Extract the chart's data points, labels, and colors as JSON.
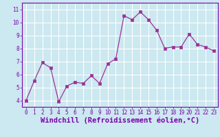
{
  "x": [
    0,
    1,
    2,
    3,
    4,
    5,
    6,
    7,
    8,
    9,
    10,
    11,
    12,
    13,
    14,
    15,
    16,
    17,
    18,
    19,
    20,
    21,
    22,
    23
  ],
  "y": [
    4.0,
    5.5,
    6.9,
    6.5,
    3.9,
    5.1,
    5.4,
    5.3,
    5.9,
    5.3,
    6.8,
    7.2,
    10.5,
    10.2,
    10.8,
    10.2,
    9.4,
    8.0,
    8.1,
    8.1,
    9.1,
    8.3,
    8.1,
    7.8
  ],
  "line_color": "#993399",
  "marker": "s",
  "marker_size": 2.5,
  "bg_color": "#cce8f0",
  "grid_color": "#ffffff",
  "xlabel": "Windchill (Refroidissement éolien,°C)",
  "xlabel_color": "#7700aa",
  "ylim": [
    3.5,
    11.5
  ],
  "xlim": [
    -0.5,
    23.5
  ],
  "yticks": [
    4,
    5,
    6,
    7,
    8,
    9,
    10,
    11
  ],
  "xticks": [
    0,
    1,
    2,
    3,
    4,
    5,
    6,
    7,
    8,
    9,
    10,
    11,
    12,
    13,
    14,
    15,
    16,
    17,
    18,
    19,
    20,
    21,
    22,
    23
  ],
  "tick_color": "#7700aa",
  "tick_labelsize": 5.5,
  "xlabel_fontsize": 7.5
}
